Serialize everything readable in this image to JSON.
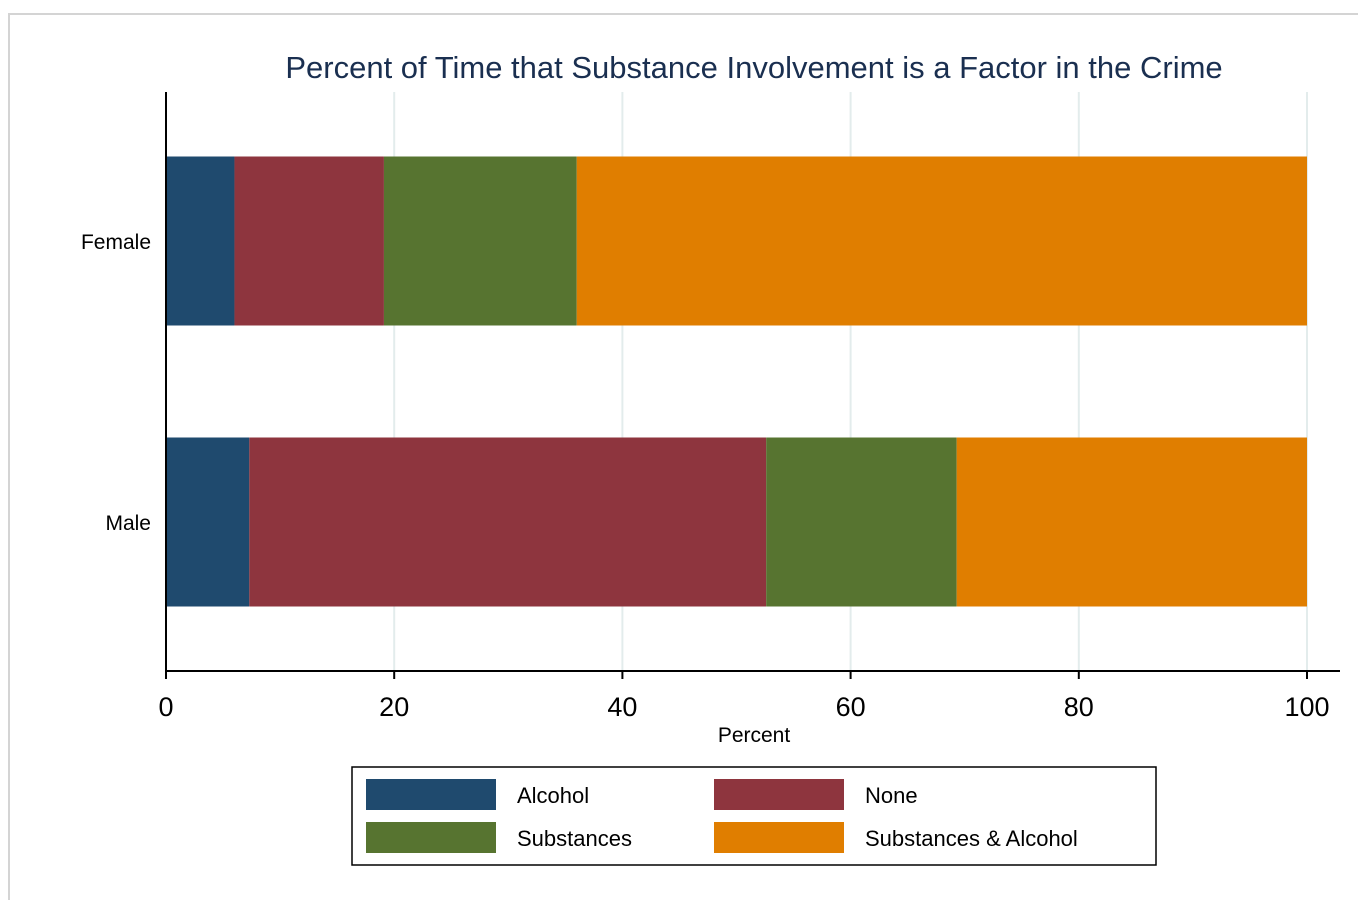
{
  "chart_data": {
    "type": "bar",
    "orientation": "horizontal",
    "stacked": true,
    "title": "Percent of Time that Substance Involvement is a Factor in the Crime",
    "xlabel": "Percent",
    "ylabel": "",
    "xlim": [
      0,
      100
    ],
    "xticks": [
      0,
      20,
      40,
      60,
      80,
      100
    ],
    "categories": [
      "Female",
      "Male"
    ],
    "series": [
      {
        "name": "Alcohol",
        "color": "#1f4a6e",
        "values": [
          6.0,
          7.3
        ]
      },
      {
        "name": "None",
        "color": "#8e353e",
        "values": [
          13.1,
          45.3
        ]
      },
      {
        "name": "Substances",
        "color": "#577430",
        "values": [
          16.9,
          16.7
        ]
      },
      {
        "name": "Substances & Alcohol",
        "color": "#e07e00",
        "values": [
          64.0,
          30.7
        ]
      }
    ],
    "grid": true,
    "legend_position": "bottom"
  }
}
